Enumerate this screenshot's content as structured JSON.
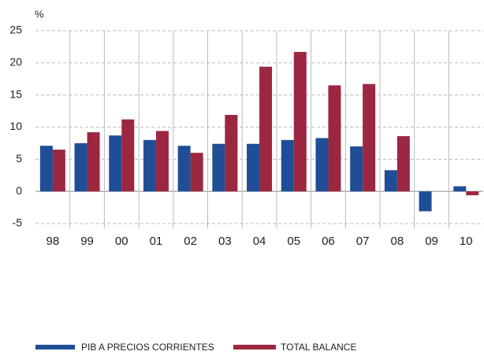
{
  "chart_data": {
    "type": "bar",
    "y_label": "%",
    "categories": [
      "98",
      "99",
      "00",
      "01",
      "02",
      "03",
      "04",
      "05",
      "06",
      "07",
      "08",
      "09",
      "10"
    ],
    "series": [
      {
        "name": "PIB A PRECIOS CORRIENTES",
        "color": "#1f4e96",
        "values": [
          7.1,
          7.5,
          8.7,
          8.0,
          7.1,
          7.4,
          7.4,
          8.0,
          8.3,
          7.0,
          3.3,
          -3.1,
          0.8
        ]
      },
      {
        "name": "TOTAL BALANCE",
        "color": "#9b2740",
        "values": [
          6.5,
          9.2,
          11.2,
          9.4,
          6.0,
          11.9,
          19.4,
          21.7,
          16.5,
          16.7,
          8.6,
          null,
          -0.6
        ]
      }
    ],
    "ylim": [
      -5,
      25
    ],
    "yticks": [
      -5,
      0,
      5,
      10,
      15,
      20,
      25
    ],
    "grid": true,
    "legend": "bottom"
  }
}
